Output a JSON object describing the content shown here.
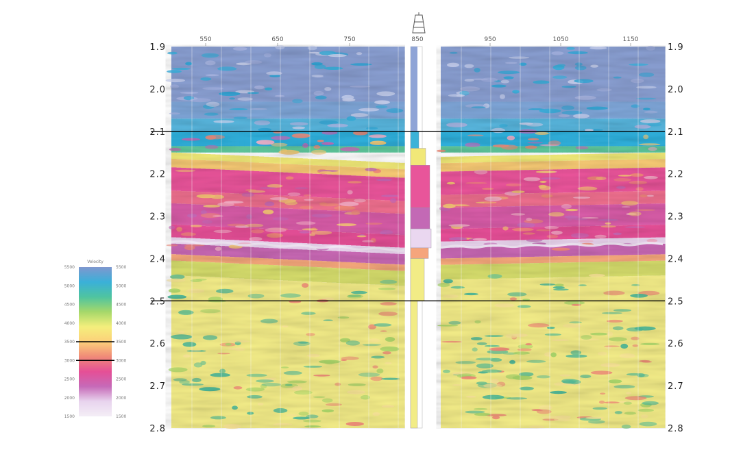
{
  "chart_data": {
    "type": "heatmap",
    "title": "",
    "xlabel": "",
    "ylabel": "",
    "y_axis": {
      "ticks": [
        "1.9",
        "2.0",
        "2.1",
        "2.2",
        "2.3",
        "2.4",
        "2.5",
        "2.6",
        "2.7",
        "2.8"
      ],
      "ylim": [
        1.9,
        2.8
      ],
      "direction": "downward"
    },
    "x_axis": {
      "ticks_left_panel": [
        "550",
        "650",
        "750"
      ],
      "well_label": "850",
      "ticks_right_panel": [
        "950",
        "1050",
        "1150"
      ]
    },
    "horizon_lines_time": [
      2.1,
      2.5
    ],
    "well_log_present": true,
    "colorbar": {
      "header": "Velocity",
      "tick_labels": [
        "5500",
        "5000",
        "4500",
        "4000",
        "3500",
        "3000",
        "2500",
        "2000",
        "1500"
      ],
      "marked_levels": [
        3500,
        3000
      ],
      "colors_top_to_bottom": [
        "#7f97cf",
        "#3ab0d8",
        "#4fc4a0",
        "#a6d86a",
        "#f4ef7c",
        "#fcd07a",
        "#f08a78",
        "#e54f96",
        "#c66ab8",
        "#e8d4ee",
        "#f4eef6"
      ]
    },
    "depicted_layers": [
      {
        "time_range": [
          1.9,
          2.1
        ],
        "color": "#8a9fd2",
        "note": "blue/cyan"
      },
      {
        "time_range": [
          2.1,
          2.18
        ],
        "color": "#36b2dc",
        "note": "cyan/green transition"
      },
      {
        "time_range": [
          2.18,
          2.38
        ],
        "color": "#e7559a",
        "note": "pink/magenta"
      },
      {
        "time_range": [
          2.38,
          2.42
        ],
        "color": "#e8d2ee",
        "note": "light violet band"
      },
      {
        "time_range": [
          2.42,
          2.8
        ],
        "color": "#f2ec86",
        "note": "yellow with green patches"
      }
    ]
  }
}
